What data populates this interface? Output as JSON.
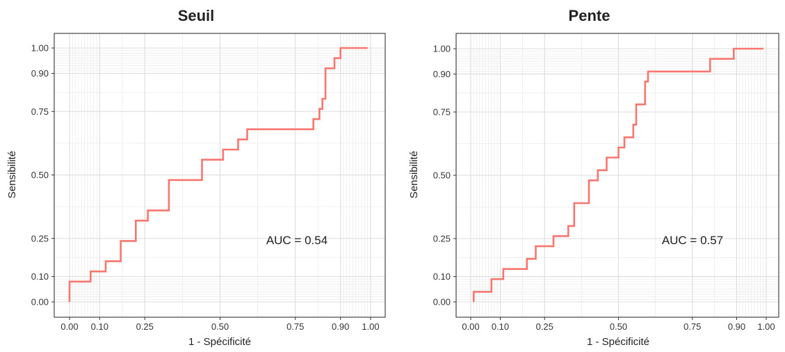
{
  "chart_data": [
    {
      "type": "line",
      "title": "Seuil",
      "xlabel": "1 - Spécificité",
      "ylabel": "Sensibilité",
      "xlim": [
        0,
        1
      ],
      "ylim": [
        0,
        1
      ],
      "xticks": [
        0.0,
        0.1,
        0.25,
        0.5,
        0.75,
        0.9,
        1.0
      ],
      "xtick_labels": [
        "0.00",
        "0.10",
        "0.25",
        "0.50",
        "0.75",
        "0.90",
        "1.00"
      ],
      "yticks": [
        0.0,
        0.1,
        0.25,
        0.5,
        0.75,
        0.9,
        1.0
      ],
      "ytick_labels": [
        "0.00",
        "0.10",
        "0.25",
        "0.50",
        "0.75",
        "0.90",
        "1.00"
      ],
      "grid": true,
      "color": "#f8766d",
      "annotation": "AUC = 0.54",
      "series": [
        {
          "x": [
            0.0,
            0.0,
            0.07,
            0.07,
            0.12,
            0.12,
            0.17,
            0.17,
            0.22,
            0.22,
            0.26,
            0.26,
            0.33,
            0.33,
            0.44,
            0.44,
            0.51,
            0.51,
            0.56,
            0.56,
            0.59,
            0.59,
            0.81,
            0.81,
            0.83,
            0.83,
            0.84,
            0.84,
            0.85,
            0.85,
            0.88,
            0.88,
            0.9,
            0.9,
            0.99
          ],
          "y": [
            0.0,
            0.08,
            0.08,
            0.12,
            0.12,
            0.16,
            0.16,
            0.24,
            0.24,
            0.32,
            0.32,
            0.36,
            0.36,
            0.48,
            0.48,
            0.56,
            0.56,
            0.6,
            0.6,
            0.64,
            0.64,
            0.68,
            0.68,
            0.72,
            0.72,
            0.76,
            0.76,
            0.8,
            0.8,
            0.92,
            0.92,
            0.96,
            0.96,
            1.0,
            1.0
          ]
        }
      ]
    },
    {
      "type": "line",
      "title": "Pente",
      "xlabel": "1 - Spécificité",
      "ylabel": "Sensibilité",
      "xlim": [
        0,
        1
      ],
      "ylim": [
        0,
        1
      ],
      "xticks": [
        0.0,
        0.1,
        0.25,
        0.5,
        0.75,
        0.9,
        1.0
      ],
      "xtick_labels": [
        "0.00",
        "0.10",
        "0.25",
        "0.50",
        "0.75",
        "0.90",
        "1.00"
      ],
      "yticks": [
        0.0,
        0.1,
        0.25,
        0.5,
        0.75,
        0.9,
        1.0
      ],
      "ytick_labels": [
        "0.00",
        "0.10",
        "0.25",
        "0.50",
        "0.75",
        "0.90",
        "1.00"
      ],
      "grid": true,
      "color": "#f8766d",
      "annotation": "AUC = 0.57",
      "series": [
        {
          "x": [
            0.01,
            0.01,
            0.07,
            0.07,
            0.11,
            0.11,
            0.19,
            0.19,
            0.22,
            0.22,
            0.28,
            0.28,
            0.33,
            0.33,
            0.35,
            0.35,
            0.4,
            0.4,
            0.43,
            0.43,
            0.46,
            0.46,
            0.5,
            0.5,
            0.52,
            0.52,
            0.55,
            0.55,
            0.56,
            0.56,
            0.59,
            0.59,
            0.6,
            0.6,
            0.81,
            0.81,
            0.89,
            0.89,
            0.99
          ],
          "y": [
            0.0,
            0.04,
            0.04,
            0.09,
            0.09,
            0.13,
            0.13,
            0.17,
            0.17,
            0.22,
            0.22,
            0.26,
            0.26,
            0.3,
            0.3,
            0.39,
            0.39,
            0.48,
            0.48,
            0.52,
            0.52,
            0.57,
            0.57,
            0.61,
            0.61,
            0.65,
            0.65,
            0.7,
            0.7,
            0.78,
            0.78,
            0.87,
            0.87,
            0.91,
            0.91,
            0.96,
            0.96,
            1.0,
            1.0
          ]
        }
      ]
    }
  ]
}
